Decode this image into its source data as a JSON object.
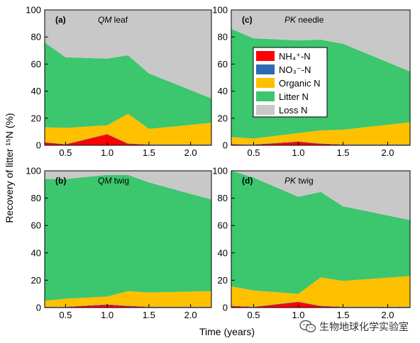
{
  "figure": {
    "ylabel": "Recovery of litter ¹⁵N (%)",
    "xlabel": "Time (years)",
    "watermark": "生物地球化学实验室"
  },
  "legend": [
    {
      "label": "NH₄⁺-N",
      "color": "#ff0000"
    },
    {
      "label": "NO₃⁻-N",
      "color": "#2d6bb3"
    },
    {
      "label": "Organic N",
      "color": "#ffc000"
    },
    {
      "label": "Litter N",
      "color": "#3cc66d"
    },
    {
      "label": "Loss N",
      "color": "#c8c8c8"
    }
  ],
  "chart_data": [
    {
      "type": "area",
      "tag": "(a)",
      "title": "QM leaf",
      "x": [
        0.25,
        0.5,
        1.0,
        1.25,
        1.5,
        2.25
      ],
      "xlim": [
        0.25,
        2.25
      ],
      "ylim": [
        0,
        100
      ],
      "xticks": [
        0.5,
        1.0,
        1.5,
        2.0
      ],
      "xticklabels": [
        "0.5",
        "1.0",
        "1.5",
        "2.0"
      ],
      "yticks": [
        0,
        20,
        40,
        60,
        80,
        100
      ],
      "series": [
        {
          "name": "NH₄⁺-N",
          "values": [
            2,
            0.5,
            8,
            1,
            0.3,
            0.3
          ]
        },
        {
          "name": "NO₃⁻-N",
          "values": [
            0.3,
            0.3,
            0.3,
            0.3,
            0.3,
            0.3
          ]
        },
        {
          "name": "Organic N",
          "values": [
            11,
            12,
            6.5,
            22,
            11.5,
            16
          ]
        },
        {
          "name": "Litter N",
          "values": [
            62.7,
            52.2,
            49.2,
            43.2,
            41,
            18
          ]
        },
        {
          "name": "Loss N",
          "values": [
            24,
            35,
            36,
            33.5,
            47,
            65.4
          ]
        }
      ]
    },
    {
      "type": "area",
      "tag": "(c)",
      "title": "PK needle",
      "x": [
        0.25,
        0.5,
        1.0,
        1.25,
        1.5,
        2.25
      ],
      "xlim": [
        0.25,
        2.25
      ],
      "ylim": [
        0,
        100
      ],
      "xticks": [
        0.5,
        1.0,
        1.5,
        2.0
      ],
      "xticklabels": [
        "0.5",
        "1.0",
        "1.5",
        "2.0"
      ],
      "yticks": [
        0,
        20,
        40,
        60,
        80,
        100
      ],
      "series": [
        {
          "name": "NH₄⁺-N",
          "values": [
            0.5,
            0.3,
            2.5,
            1,
            0.3,
            0.3
          ]
        },
        {
          "name": "NO₃⁻-N",
          "values": [
            0.3,
            0.3,
            0.3,
            0.3,
            0.3,
            0.3
          ]
        },
        {
          "name": "Organic N",
          "values": [
            5.2,
            4.4,
            6.2,
            9.7,
            10.9,
            16.4
          ]
        },
        {
          "name": "Litter N",
          "values": [
            80,
            74,
            68.5,
            67,
            63.5,
            37.5
          ]
        },
        {
          "name": "Loss N",
          "values": [
            14,
            21,
            22.5,
            22,
            25,
            45.5
          ]
        }
      ]
    },
    {
      "type": "area",
      "tag": "(b)",
      "title": "QM twig",
      "x": [
        0.25,
        0.5,
        1.0,
        1.25,
        1.5,
        2.25
      ],
      "xlim": [
        0.25,
        2.25
      ],
      "ylim": [
        0,
        100
      ],
      "xticks": [
        0.5,
        1.0,
        1.5,
        2.0
      ],
      "xticklabels": [
        "0.5",
        "1.0",
        "1.5",
        "2.0"
      ],
      "yticks": [
        0,
        20,
        40,
        60,
        80,
        100
      ],
      "series": [
        {
          "name": "NH₄⁺-N",
          "values": [
            0.3,
            0.3,
            2,
            1,
            0.3,
            0.3
          ]
        },
        {
          "name": "NO₃⁻-N",
          "values": [
            0.3,
            0.3,
            0.3,
            0.3,
            0.3,
            0.3
          ]
        },
        {
          "name": "Organic N",
          "values": [
            4.4,
            5.9,
            5.7,
            10.7,
            10.4,
            11.4
          ]
        },
        {
          "name": "Litter N",
          "values": [
            89,
            87.5,
            89,
            85,
            80.5,
            67
          ]
        },
        {
          "name": "Loss N",
          "values": [
            6,
            6,
            3,
            3,
            8.5,
            21
          ]
        }
      ]
    },
    {
      "type": "area",
      "tag": "(d)",
      "title": "PK twig",
      "x": [
        0.25,
        0.5,
        1.0,
        1.25,
        1.5,
        2.25
      ],
      "xlim": [
        0.25,
        2.25
      ],
      "ylim": [
        0,
        100
      ],
      "xticks": [
        0.5,
        1.0,
        1.5,
        2.0
      ],
      "xticklabels": [
        "0.5",
        "1.0",
        "1.5",
        "2.0"
      ],
      "yticks": [
        0,
        20,
        40,
        60,
        80,
        100
      ],
      "series": [
        {
          "name": "NH₄⁺-N",
          "values": [
            1,
            0.3,
            4,
            1,
            0.3,
            0.3
          ]
        },
        {
          "name": "NO₃⁻-N",
          "values": [
            0.3,
            0.3,
            0.3,
            0.3,
            0.3,
            0.3
          ]
        },
        {
          "name": "Organic N",
          "values": [
            14.2,
            11.9,
            5.7,
            20.7,
            18.9,
            22.4
          ]
        },
        {
          "name": "Litter N",
          "values": [
            84.5,
            82.5,
            71,
            62.5,
            54.5,
            41
          ]
        },
        {
          "name": "Loss N",
          "values": [
            0,
            5,
            19,
            15.5,
            26,
            36
          ]
        }
      ]
    }
  ]
}
